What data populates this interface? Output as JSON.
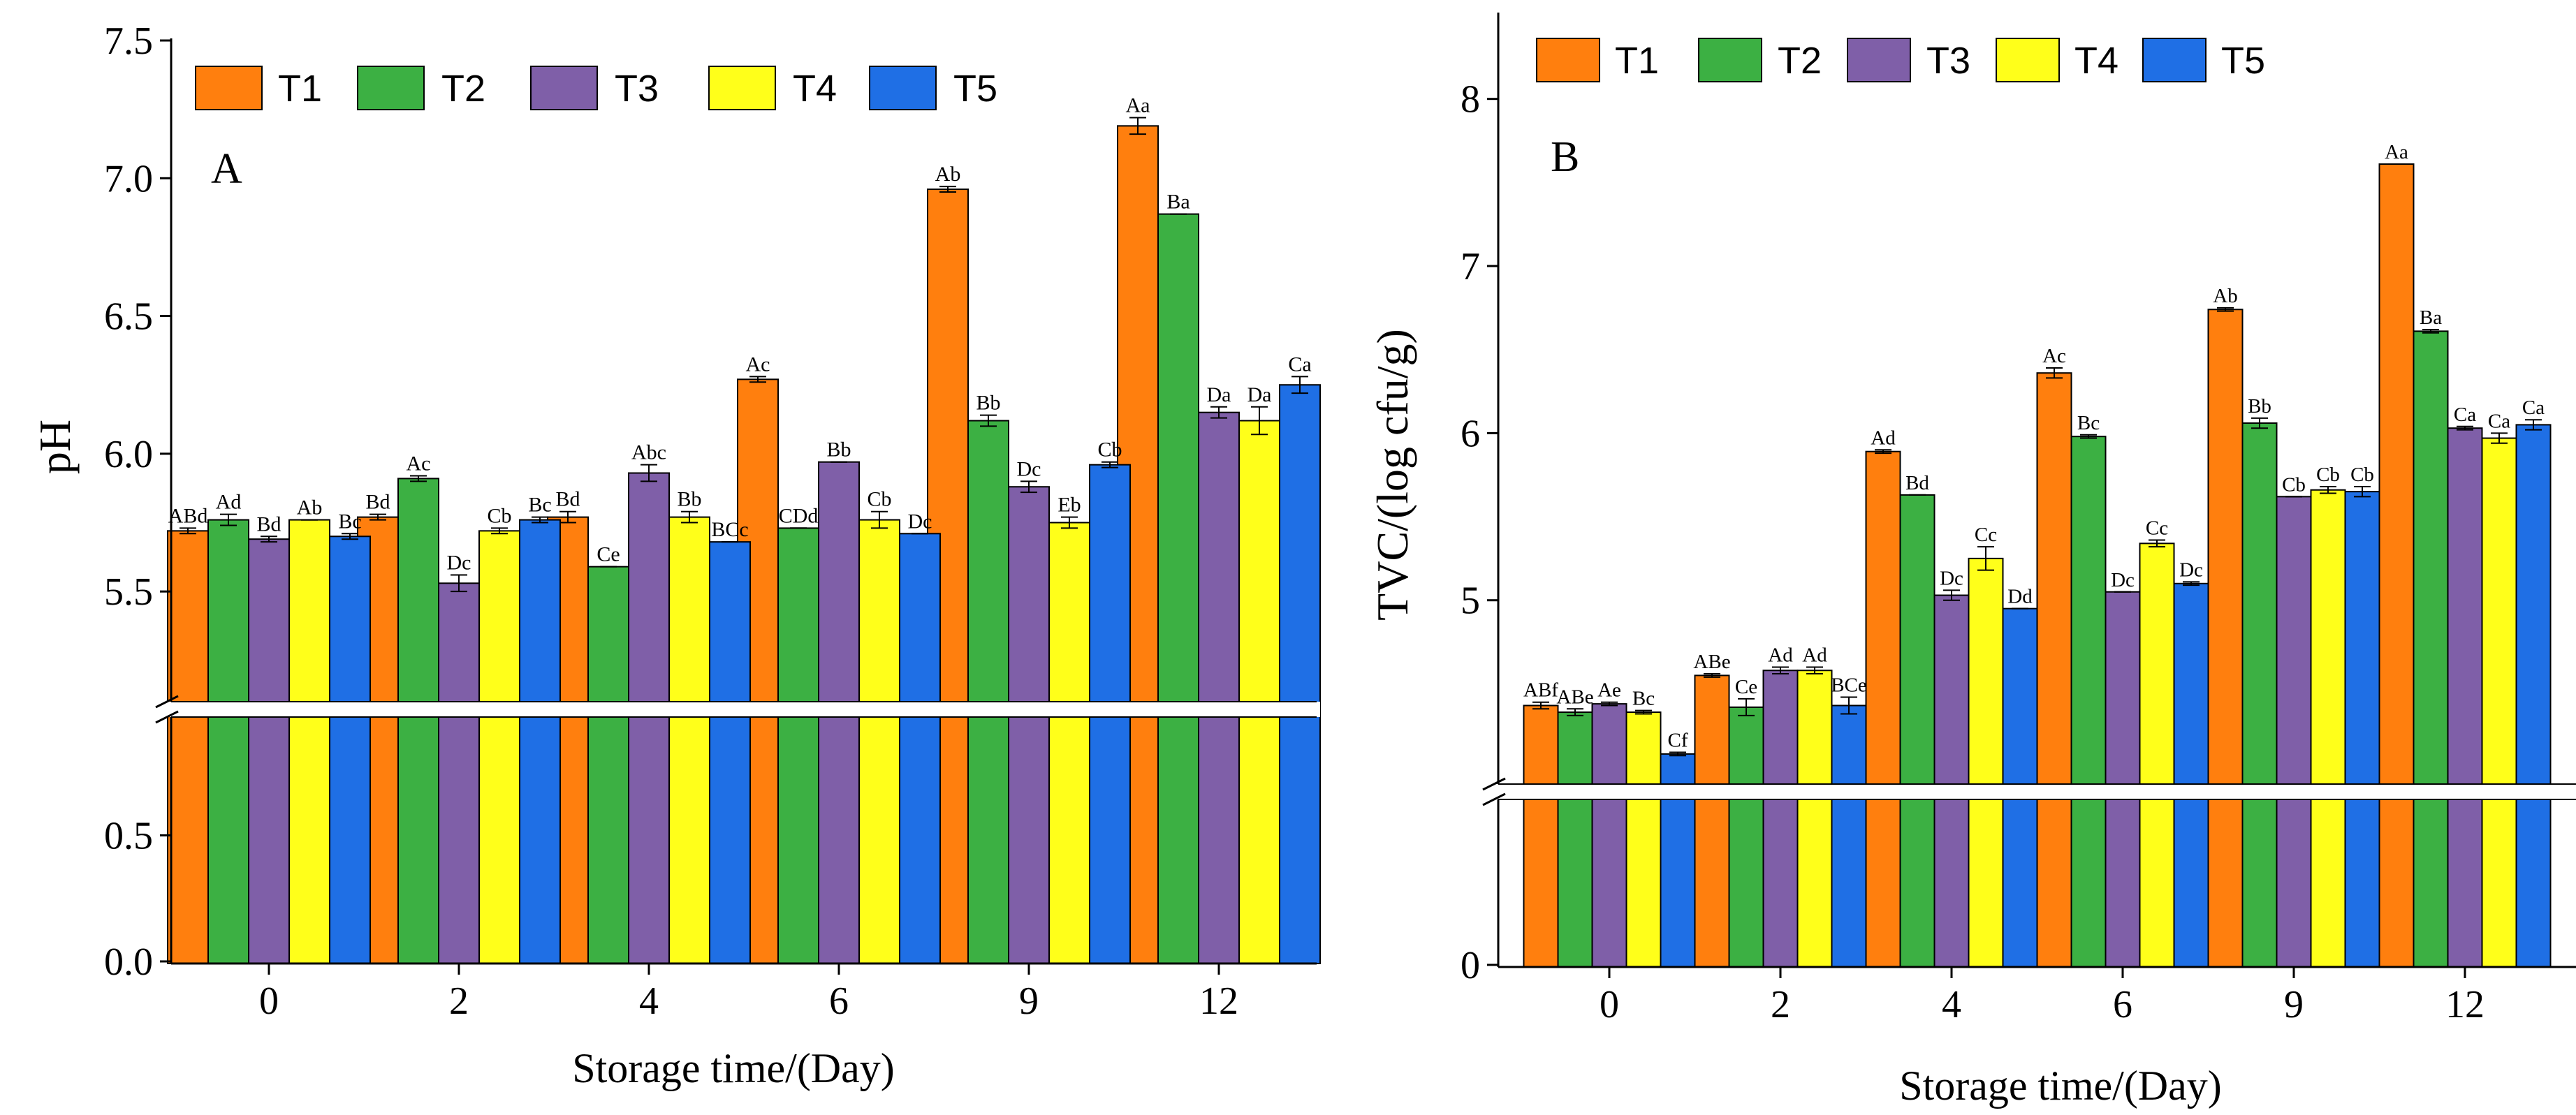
{
  "colors": {
    "T1": "#FF7F0E",
    "T2": "#3CB043",
    "T3": "#7F5FA8",
    "T4": "#FFFF1A",
    "T5": "#1F6FE5"
  },
  "chart_data": [
    {
      "type": "bar",
      "panel_label": "A",
      "xlabel": "Storage time/(Day)",
      "ylabel": "pH",
      "categories": [
        "0",
        "2",
        "4",
        "6",
        "9",
        "12"
      ],
      "axis_break": true,
      "ylim_lower": [
        0.0,
        1.0
      ],
      "ylim_upper": [
        5.1,
        7.5
      ],
      "yticks_lower": [
        {
          "value": 0.0,
          "label": "0.0"
        },
        {
          "value": 0.5,
          "label": "0.5"
        }
      ],
      "yticks_upper": [
        {
          "value": 5.5,
          "label": "5.5"
        },
        {
          "value": 6.0,
          "label": "6.0"
        },
        {
          "value": 6.5,
          "label": "6.5"
        },
        {
          "value": 7.0,
          "label": "7.0"
        },
        {
          "value": 7.5,
          "label": "7.5"
        }
      ],
      "series": [
        {
          "name": "T1",
          "values": [
            5.72,
            5.77,
            5.77,
            6.27,
            6.96,
            7.19
          ],
          "errors": [
            0.01,
            0.01,
            0.02,
            0.01,
            0.01,
            0.03
          ],
          "labels": [
            "ABd",
            "Bd",
            "Bd",
            "Ac",
            "Ab",
            "Aa"
          ]
        },
        {
          "name": "T2",
          "values": [
            5.76,
            5.91,
            5.59,
            5.73,
            6.12,
            6.87
          ],
          "errors": [
            0.02,
            0.01,
            0.0,
            0.0,
            0.02,
            0.0
          ],
          "labels": [
            "Ad",
            "Ac",
            "Ce",
            "CDd",
            "Bb",
            "Ba"
          ]
        },
        {
          "name": "T3",
          "values": [
            5.69,
            5.53,
            5.93,
            5.97,
            5.88,
            6.15
          ],
          "errors": [
            0.01,
            0.03,
            0.03,
            0.0,
            0.02,
            0.02
          ],
          "labels": [
            "Bd",
            "Dc",
            "Abc",
            "Bb",
            "Dc",
            "Da"
          ]
        },
        {
          "name": "T4",
          "values": [
            5.76,
            5.72,
            5.77,
            5.76,
            5.75,
            6.12
          ],
          "errors": [
            0.0,
            0.01,
            0.02,
            0.03,
            0.02,
            0.05
          ],
          "labels": [
            "Ab",
            "Cb",
            "Bb",
            "Cb",
            "Eb",
            "Da"
          ]
        },
        {
          "name": "T5",
          "values": [
            5.7,
            5.76,
            5.68,
            5.71,
            5.96,
            6.25
          ],
          "errors": [
            0.01,
            0.01,
            0.0,
            0.0,
            0.01,
            0.03
          ],
          "labels": [
            "Bc",
            "Bc",
            "BCc",
            "Dc",
            "Cb",
            "Ca"
          ]
        }
      ]
    },
    {
      "type": "bar",
      "panel_label": "B",
      "xlabel": "Storage time/(Day)",
      "ylabel": "TVC/(log cfu/g)",
      "categories": [
        "0",
        "2",
        "4",
        "6",
        "9",
        "12"
      ],
      "axis_break": true,
      "ylim_lower": [
        0,
        1
      ],
      "ylim_upper": [
        3.9,
        8.5
      ],
      "yticks_lower": [
        {
          "value": 0,
          "label": "0"
        }
      ],
      "yticks_upper": [
        {
          "value": 5,
          "label": "5"
        },
        {
          "value": 6,
          "label": "6"
        },
        {
          "value": 7,
          "label": "7"
        },
        {
          "value": 8,
          "label": "8"
        }
      ],
      "series": [
        {
          "name": "T1",
          "values": [
            4.37,
            4.55,
            5.89,
            6.36,
            6.74,
            7.61
          ],
          "errors": [
            0.02,
            0.01,
            0.01,
            0.03,
            0.01,
            0.0
          ],
          "labels": [
            "ABf",
            "ABe",
            "Ad",
            "Ac",
            "Ab",
            "Aa"
          ]
        },
        {
          "name": "T2",
          "values": [
            4.33,
            4.36,
            5.63,
            5.98,
            6.06,
            6.61
          ],
          "errors": [
            0.02,
            0.05,
            0.0,
            0.01,
            0.03,
            0.01
          ],
          "labels": [
            "ABe",
            "Ce",
            "Bd",
            "Bc",
            "Bb",
            "Ba"
          ]
        },
        {
          "name": "T3",
          "values": [
            4.38,
            4.58,
            5.03,
            5.05,
            5.62,
            6.03
          ],
          "errors": [
            0.01,
            0.02,
            0.03,
            0.0,
            0.0,
            0.01
          ],
          "labels": [
            "Ae",
            "Ad",
            "Dc",
            "Dc",
            "Cb",
            "Ca"
          ]
        },
        {
          "name": "T4",
          "values": [
            4.33,
            4.58,
            5.25,
            5.34,
            5.66,
            5.97
          ],
          "errors": [
            0.01,
            0.02,
            0.07,
            0.02,
            0.02,
            0.03
          ],
          "labels": [
            "Bc",
            "Ad",
            "Cc",
            "Cc",
            "Cb",
            "Ca"
          ]
        },
        {
          "name": "T5",
          "values": [
            4.08,
            4.37,
            4.95,
            5.1,
            5.65,
            6.05
          ],
          "errors": [
            0.01,
            0.05,
            0.0,
            0.01,
            0.03,
            0.03
          ],
          "labels": [
            "Cf",
            "BCe",
            "Dd",
            "Dc",
            "Cb",
            "Ca"
          ]
        }
      ]
    }
  ]
}
